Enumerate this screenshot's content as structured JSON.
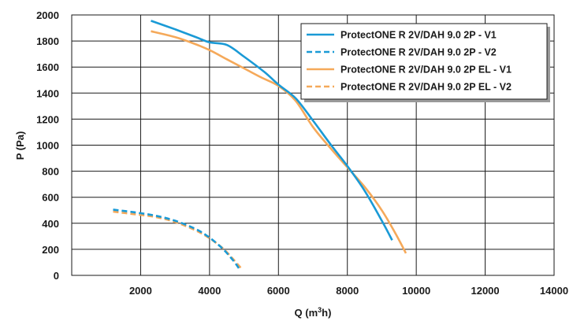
{
  "chart_data": {
    "type": "line",
    "xlabel": "Q (m³h)",
    "ylabel": "P (Pa)",
    "xlim": [
      0,
      14000
    ],
    "ylim": [
      0,
      2000
    ],
    "x_ticks": [
      2000,
      4000,
      6000,
      8000,
      10000,
      12000,
      14000
    ],
    "y_ticks": [
      0,
      200,
      400,
      600,
      800,
      1000,
      1200,
      1400,
      1600,
      1800,
      2000
    ],
    "grid": true,
    "legend_position": "top-right",
    "series": [
      {
        "name": "ProtectONE R 2V/DAH 9.0 2P - V1",
        "color": "#1a9ad6",
        "dash": "solid",
        "points": [
          [
            2300,
            1955
          ],
          [
            3000,
            1890
          ],
          [
            3600,
            1830
          ],
          [
            4000,
            1790
          ],
          [
            4500,
            1770
          ],
          [
            5000,
            1680
          ],
          [
            5600,
            1560
          ],
          [
            6000,
            1465
          ],
          [
            6500,
            1360
          ],
          [
            7000,
            1190
          ],
          [
            7500,
            1010
          ],
          [
            8000,
            840
          ],
          [
            8500,
            650
          ],
          [
            9000,
            420
          ],
          [
            9300,
            270
          ]
        ]
      },
      {
        "name": "ProtectONE R 2V/DAH 9.0 2P - V2",
        "color": "#1a9ad6",
        "dash": "dashed",
        "points": [
          [
            1200,
            505
          ],
          [
            1800,
            485
          ],
          [
            2400,
            460
          ],
          [
            3000,
            420
          ],
          [
            3600,
            355
          ],
          [
            4000,
            290
          ],
          [
            4400,
            200
          ],
          [
            4700,
            110
          ],
          [
            4850,
            55
          ]
        ]
      },
      {
        "name": "ProtectONE R 2V/DAH 9.0 2P EL - V1",
        "color": "#f5a95a",
        "dash": "solid",
        "points": [
          [
            2300,
            1875
          ],
          [
            3000,
            1830
          ],
          [
            3500,
            1785
          ],
          [
            4000,
            1730
          ],
          [
            4500,
            1660
          ],
          [
            5000,
            1590
          ],
          [
            5500,
            1520
          ],
          [
            6000,
            1455
          ],
          [
            6500,
            1340
          ],
          [
            7000,
            1140
          ],
          [
            7500,
            980
          ],
          [
            8000,
            830
          ],
          [
            8500,
            680
          ],
          [
            9000,
            500
          ],
          [
            9400,
            320
          ],
          [
            9700,
            170
          ]
        ]
      },
      {
        "name": "ProtectONE R 2V/DAH 9.0 2P EL - V2",
        "color": "#f5a95a",
        "dash": "dashed",
        "points": [
          [
            1200,
            490
          ],
          [
            1800,
            470
          ],
          [
            2400,
            450
          ],
          [
            3000,
            410
          ],
          [
            3600,
            345
          ],
          [
            4000,
            285
          ],
          [
            4400,
            205
          ],
          [
            4700,
            120
          ],
          [
            4950,
            45
          ]
        ]
      }
    ]
  }
}
